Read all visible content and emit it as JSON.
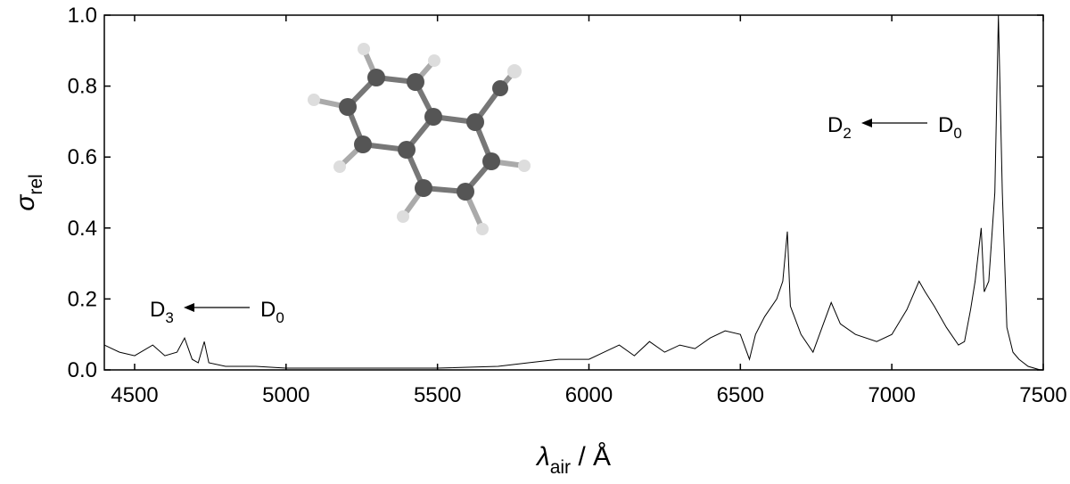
{
  "chart_data": {
    "type": "line",
    "ylabel": {
      "symbol": "σ",
      "subscript": "rel"
    },
    "xlabel": {
      "symbol": "λ",
      "subscript": "air",
      "unit": " / Å"
    },
    "xlim": [
      4400,
      7500
    ],
    "xticks": [
      4500,
      5000,
      5500,
      6000,
      6500,
      7000,
      7500
    ],
    "ylim": [
      0,
      1
    ],
    "yticks": [
      {
        "value": 0,
        "label": "0.0"
      },
      0.2,
      0.4,
      0.6,
      0.8,
      {
        "value": 1,
        "label": "1.0"
      }
    ],
    "x": [
      4400,
      4450,
      4500,
      4560,
      4600,
      4640,
      4665,
      4690,
      4710,
      4730,
      4745,
      4800,
      4900,
      5000,
      5500,
      5700,
      5800,
      5900,
      6000,
      6050,
      6100,
      6150,
      6200,
      6250,
      6300,
      6350,
      6400,
      6450,
      6500,
      6530,
      6550,
      6580,
      6620,
      6640,
      6655,
      6665,
      6700,
      6740,
      6770,
      6800,
      6830,
      6880,
      6950,
      7000,
      7050,
      7090,
      7110,
      7140,
      7180,
      7220,
      7240,
      7260,
      7275,
      7295,
      7305,
      7320,
      7340,
      7352,
      7365,
      7380,
      7400,
      7420,
      7450,
      7490
    ],
    "series": [
      {
        "color": "#000000",
        "values": [
          0.07,
          0.05,
          0.04,
          0.07,
          0.04,
          0.05,
          0.09,
          0.03,
          0.02,
          0.08,
          0.02,
          0.01,
          0.01,
          0.005,
          0.005,
          0.01,
          0.02,
          0.03,
          0.03,
          0.05,
          0.07,
          0.04,
          0.08,
          0.05,
          0.07,
          0.06,
          0.09,
          0.11,
          0.1,
          0.03,
          0.1,
          0.15,
          0.2,
          0.25,
          0.39,
          0.18,
          0.1,
          0.05,
          0.12,
          0.19,
          0.13,
          0.1,
          0.08,
          0.1,
          0.17,
          0.25,
          0.22,
          0.18,
          0.12,
          0.07,
          0.08,
          0.17,
          0.25,
          0.4,
          0.22,
          0.25,
          0.5,
          1.0,
          0.5,
          0.12,
          0.05,
          0.03,
          0.01,
          0.0
        ]
      }
    ],
    "annotations": [
      {
        "upper": {
          "letter": "D",
          "index": "3"
        },
        "lower": {
          "letter": "D",
          "index": "0"
        }
      },
      {
        "upper": {
          "letter": "D",
          "index": "2"
        },
        "lower": {
          "letter": "D",
          "index": "0"
        }
      }
    ]
  }
}
